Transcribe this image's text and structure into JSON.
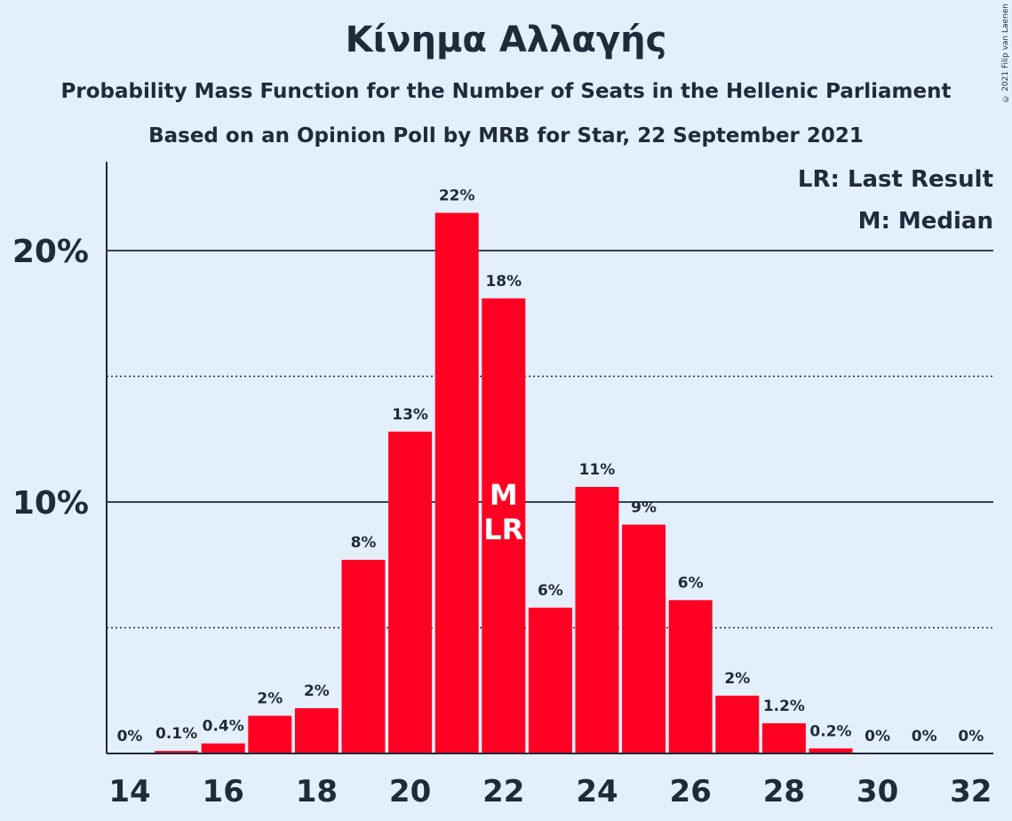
{
  "title": "Κίνημα Αλλαγής",
  "subtitle1": "Probability Mass Function for the Number of Seats in the Hellenic Parliament",
  "subtitle2": "Based on an Opinion Poll by MRB for Star, 22 September 2021",
  "copyright": "© 2021 Filip van Laenen",
  "legend": {
    "lr": "LR: Last Result",
    "m": "M: Median"
  },
  "colors": {
    "bar": "#ff0022",
    "background": "#e3f0fc",
    "text": "#1f2a3a"
  },
  "chart_data": {
    "type": "bar",
    "x": [
      14,
      15,
      16,
      17,
      18,
      19,
      20,
      21,
      22,
      23,
      24,
      25,
      26,
      27,
      28,
      29,
      30,
      31,
      32
    ],
    "values": [
      0,
      0.1,
      0.4,
      1.5,
      1.8,
      7.7,
      12.8,
      21.5,
      18.1,
      5.8,
      10.6,
      9.1,
      6.1,
      2.3,
      1.2,
      0.2,
      0,
      0,
      0
    ],
    "labels": [
      "0%",
      "0.1%",
      "0.4%",
      "2%",
      "2%",
      "8%",
      "13%",
      "22%",
      "18%",
      "6%",
      "11%",
      "9%",
      "6%",
      "2%",
      "1.2%",
      "0.2%",
      "0%",
      "0%",
      "0%"
    ],
    "xticks": [
      14,
      16,
      18,
      20,
      22,
      24,
      26,
      28,
      30,
      32
    ],
    "yticks": [
      {
        "value": 10,
        "label": "10%"
      },
      {
        "value": 20,
        "label": "20%"
      }
    ],
    "ydotted": [
      5,
      15
    ],
    "ylim": [
      0,
      23.5
    ],
    "median": 22,
    "last_result": 22,
    "median_mark": "M",
    "last_result_mark": "LR",
    "grid": true,
    "legend_position": "top-right"
  }
}
